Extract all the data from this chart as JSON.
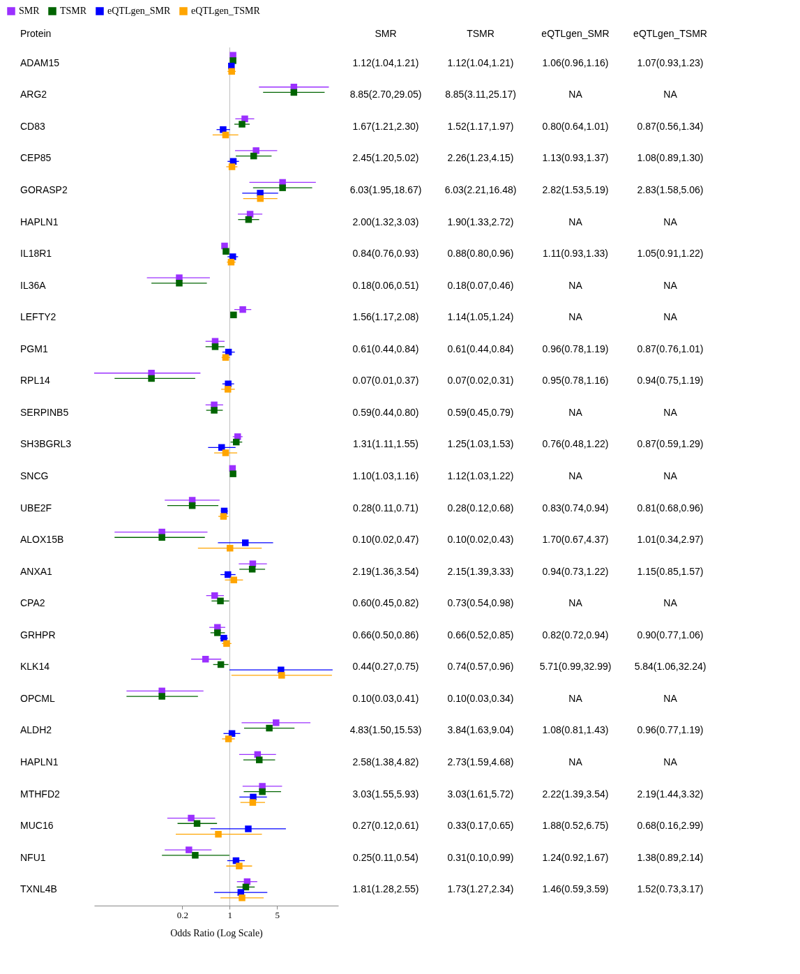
{
  "chart_data": {
    "type": "scatter",
    "orientation": "horizontal",
    "xlabel": "Odds Ratio (Log Scale)",
    "ylabel": "Protein",
    "log": "x",
    "xlim": [
      0.01,
      40
    ],
    "xticks": [
      0.2,
      1,
      5
    ],
    "grid": false,
    "legend": "top left",
    "marker": "square",
    "categories": [
      "ADAM15",
      "ARG2",
      "CD83",
      "CEP85",
      "GORASP2",
      "HAPLN1",
      "IL18R1",
      "IL36A",
      "LEFTY2",
      "PGM1",
      "RPL14",
      "SERPINB5",
      "SH3BGRL3",
      "SNCG",
      "UBE2F",
      "ALOX15B",
      "ANXA1",
      "CPA2",
      "GRHPR",
      "KLK14",
      "OPCML",
      "ALDH2",
      "HAPLN1",
      "MTHFD2",
      "MUC16",
      "NFU1",
      "TXNL4B"
    ],
    "ref_lines": [
      {
        "axis": "x",
        "value": 1,
        "color": "#bbbbbb"
      }
    ],
    "series": [
      {
        "name": "SMR",
        "color": "#9b30ff",
        "values": [
          1.12,
          8.85,
          1.67,
          2.45,
          6.03,
          2.0,
          0.84,
          0.18,
          1.56,
          0.61,
          0.07,
          0.59,
          1.31,
          1.1,
          0.28,
          0.1,
          2.19,
          0.6,
          0.66,
          0.44,
          0.1,
          4.83,
          2.58,
          3.03,
          0.27,
          0.25,
          1.81
        ],
        "errors": [
          [
            1.04,
            1.21
          ],
          [
            2.7,
            29.05
          ],
          [
            1.21,
            2.3
          ],
          [
            1.2,
            5.02
          ],
          [
            1.95,
            18.67
          ],
          [
            1.32,
            3.03
          ],
          [
            0.76,
            0.93
          ],
          [
            0.06,
            0.51
          ],
          [
            1.17,
            2.08
          ],
          [
            0.44,
            0.84
          ],
          [
            0.01,
            0.37
          ],
          [
            0.44,
            0.8
          ],
          [
            1.11,
            1.55
          ],
          [
            1.03,
            1.16
          ],
          [
            0.11,
            0.71
          ],
          [
            0.02,
            0.47
          ],
          [
            1.36,
            3.54
          ],
          [
            0.45,
            0.82
          ],
          [
            0.5,
            0.86
          ],
          [
            0.27,
            0.75
          ],
          [
            0.03,
            0.41
          ],
          [
            1.5,
            15.53
          ],
          [
            1.38,
            4.82
          ],
          [
            1.55,
            5.93
          ],
          [
            0.12,
            0.61
          ],
          [
            0.11,
            0.54
          ],
          [
            1.28,
            2.55
          ]
        ],
        "value_labels": [
          "1.12(1.04,1.21)",
          "8.85(2.70,29.05)",
          "1.67(1.21,2.30)",
          "2.45(1.20,5.02)",
          "6.03(1.95,18.67)",
          "2.00(1.32,3.03)",
          "0.84(0.76,0.93)",
          "0.18(0.06,0.51)",
          "1.56(1.17,2.08)",
          "0.61(0.44,0.84)",
          "0.07(0.01,0.37)",
          "0.59(0.44,0.80)",
          "1.31(1.11,1.55)",
          "1.10(1.03,1.16)",
          "0.28(0.11,0.71)",
          "0.10(0.02,0.47)",
          "2.19(1.36,3.54)",
          "0.60(0.45,0.82)",
          "0.66(0.50,0.86)",
          "0.44(0.27,0.75)",
          "0.10(0.03,0.41)",
          "4.83(1.50,15.53)",
          "2.58(1.38,4.82)",
          "3.03(1.55,5.93)",
          "0.27(0.12,0.61)",
          "0.25(0.11,0.54)",
          "1.81(1.28,2.55)"
        ]
      },
      {
        "name": "TSMR",
        "color": "#006400",
        "values": [
          1.12,
          8.85,
          1.52,
          2.26,
          6.03,
          1.9,
          0.88,
          0.18,
          1.14,
          0.61,
          0.07,
          0.59,
          1.25,
          1.12,
          0.28,
          0.1,
          2.15,
          0.73,
          0.66,
          0.74,
          0.1,
          3.84,
          2.73,
          3.03,
          0.33,
          0.31,
          1.73
        ],
        "errors": [
          [
            1.04,
            1.21
          ],
          [
            3.11,
            25.17
          ],
          [
            1.17,
            1.97
          ],
          [
            1.23,
            4.15
          ],
          [
            2.21,
            16.48
          ],
          [
            1.33,
            2.72
          ],
          [
            0.8,
            0.96
          ],
          [
            0.07,
            0.46
          ],
          [
            1.05,
            1.24
          ],
          [
            0.44,
            0.84
          ],
          [
            0.02,
            0.31
          ],
          [
            0.45,
            0.79
          ],
          [
            1.03,
            1.53
          ],
          [
            1.03,
            1.22
          ],
          [
            0.12,
            0.68
          ],
          [
            0.02,
            0.43
          ],
          [
            1.39,
            3.33
          ],
          [
            0.54,
            0.98
          ],
          [
            0.52,
            0.85
          ],
          [
            0.57,
            0.96
          ],
          [
            0.03,
            0.34
          ],
          [
            1.63,
            9.04
          ],
          [
            1.59,
            4.68
          ],
          [
            1.61,
            5.72
          ],
          [
            0.17,
            0.65
          ],
          [
            0.1,
            0.99
          ],
          [
            1.27,
            2.34
          ]
        ],
        "value_labels": [
          "1.12(1.04,1.21)",
          "8.85(3.11,25.17)",
          "1.52(1.17,1.97)",
          "2.26(1.23,4.15)",
          "6.03(2.21,16.48)",
          "1.90(1.33,2.72)",
          "0.88(0.80,0.96)",
          "0.18(0.07,0.46)",
          "1.14(1.05,1.24)",
          "0.61(0.44,0.84)",
          "0.07(0.02,0.31)",
          "0.59(0.45,0.79)",
          "1.25(1.03,1.53)",
          "1.12(1.03,1.22)",
          "0.28(0.12,0.68)",
          "0.10(0.02,0.43)",
          "2.15(1.39,3.33)",
          "0.73(0.54,0.98)",
          "0.66(0.52,0.85)",
          "0.74(0.57,0.96)",
          "0.10(0.03,0.34)",
          "3.84(1.63,9.04)",
          "2.73(1.59,4.68)",
          "3.03(1.61,5.72)",
          "0.33(0.17,0.65)",
          "0.31(0.10,0.99)",
          "1.73(1.27,2.34)"
        ]
      },
      {
        "name": "eQTLgen_SMR",
        "color": "#0000ff",
        "values": [
          1.06,
          null,
          0.8,
          1.13,
          2.82,
          null,
          1.11,
          null,
          null,
          0.96,
          0.95,
          null,
          0.76,
          null,
          0.83,
          1.7,
          0.94,
          null,
          0.82,
          5.71,
          null,
          1.08,
          null,
          2.22,
          1.88,
          1.24,
          1.46
        ],
        "errors": [
          [
            0.96,
            1.16
          ],
          null,
          [
            0.64,
            1.01
          ],
          [
            0.93,
            1.37
          ],
          [
            1.53,
            5.19
          ],
          null,
          [
            0.93,
            1.33
          ],
          null,
          null,
          [
            0.78,
            1.19
          ],
          [
            0.78,
            1.16
          ],
          null,
          [
            0.48,
            1.22
          ],
          null,
          [
            0.74,
            0.94
          ],
          [
            0.67,
            4.37
          ],
          [
            0.73,
            1.22
          ],
          null,
          [
            0.72,
            0.94
          ],
          [
            0.99,
            32.99
          ],
          null,
          [
            0.81,
            1.43
          ],
          null,
          [
            1.39,
            3.54
          ],
          [
            0.52,
            6.75
          ],
          [
            0.92,
            1.67
          ],
          [
            0.59,
            3.59
          ]
        ],
        "value_labels": [
          "1.06(0.96,1.16)",
          "NA",
          "0.80(0.64,1.01)",
          "1.13(0.93,1.37)",
          "2.82(1.53,5.19)",
          "NA",
          "1.11(0.93,1.33)",
          "NA",
          "NA",
          "0.96(0.78,1.19)",
          "0.95(0.78,1.16)",
          "NA",
          "0.76(0.48,1.22)",
          "NA",
          "0.83(0.74,0.94)",
          "1.70(0.67,4.37)",
          "0.94(0.73,1.22)",
          "NA",
          "0.82(0.72,0.94)",
          "5.71(0.99,32.99)",
          "NA",
          "1.08(0.81,1.43)",
          "NA",
          "2.22(1.39,3.54)",
          "1.88(0.52,6.75)",
          "1.24(0.92,1.67)",
          "1.46(0.59,3.59)"
        ]
      },
      {
        "name": "eQTLgen_TSMR",
        "color": "#ffa500",
        "values": [
          1.07,
          null,
          0.87,
          1.08,
          2.83,
          null,
          1.05,
          null,
          null,
          0.87,
          0.94,
          null,
          0.87,
          null,
          0.81,
          1.01,
          1.15,
          null,
          0.9,
          5.84,
          null,
          0.96,
          null,
          2.19,
          0.68,
          1.38,
          1.52
        ],
        "errors": [
          [
            0.93,
            1.23
          ],
          null,
          [
            0.56,
            1.34
          ],
          [
            0.89,
            1.3
          ],
          [
            1.58,
            5.06
          ],
          null,
          [
            0.91,
            1.22
          ],
          null,
          null,
          [
            0.76,
            1.01
          ],
          [
            0.75,
            1.19
          ],
          null,
          [
            0.59,
            1.29
          ],
          null,
          [
            0.68,
            0.96
          ],
          [
            0.34,
            2.97
          ],
          [
            0.85,
            1.57
          ],
          null,
          [
            0.77,
            1.06
          ],
          [
            1.06,
            32.24
          ],
          null,
          [
            0.77,
            1.19
          ],
          null,
          [
            1.44,
            3.32
          ],
          [
            0.16,
            2.99
          ],
          [
            0.89,
            2.14
          ],
          [
            0.73,
            3.17
          ]
        ],
        "value_labels": [
          "1.07(0.93,1.23)",
          "NA",
          "0.87(0.56,1.34)",
          "1.08(0.89,1.30)",
          "2.83(1.58,5.06)",
          "NA",
          "1.05(0.91,1.22)",
          "NA",
          "NA",
          "0.87(0.76,1.01)",
          "0.94(0.75,1.19)",
          "NA",
          "0.87(0.59,1.29)",
          "NA",
          "0.81(0.68,0.96)",
          "1.01(0.34,2.97)",
          "1.15(0.85,1.57)",
          "NA",
          "0.90(0.77,1.06)",
          "5.84(1.06,32.24)",
          "NA",
          "0.96(0.77,1.19)",
          "NA",
          "2.19(1.44,3.32)",
          "0.68(0.16,2.99)",
          "1.38(0.89,2.14)",
          "1.52(0.73,3.17)"
        ]
      }
    ]
  }
}
